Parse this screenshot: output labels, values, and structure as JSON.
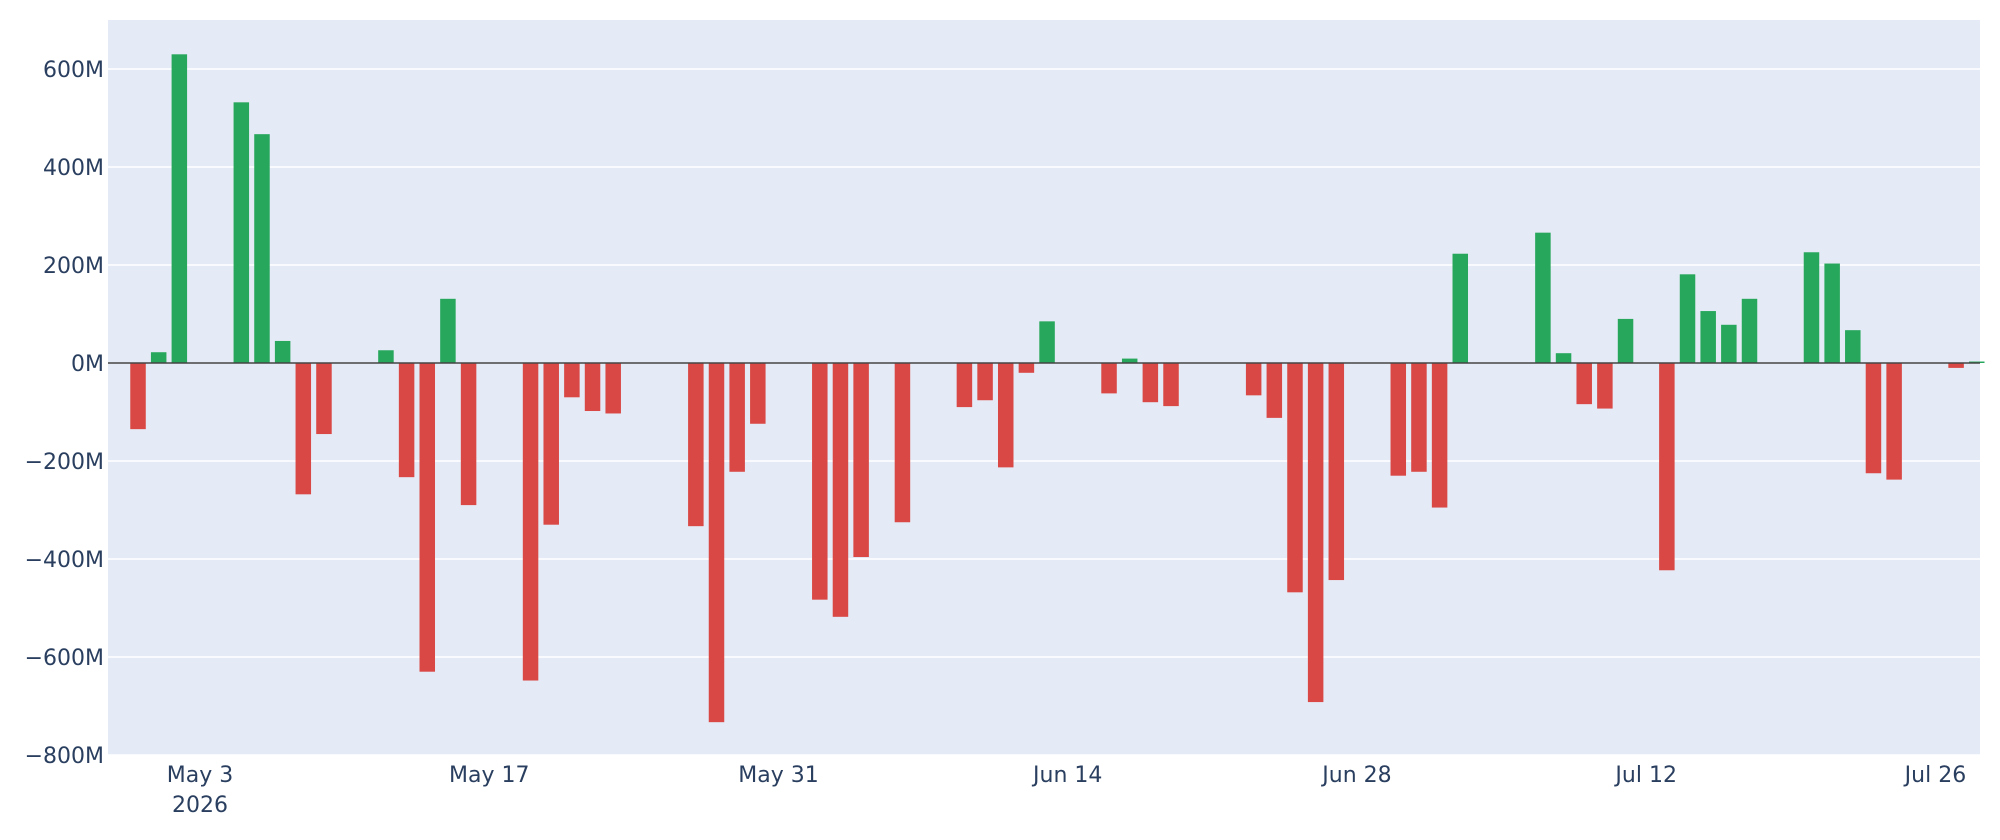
{
  "chart_data": {
    "type": "bar",
    "title": "",
    "xlabel": "",
    "ylabel": "",
    "x_axis": "date",
    "ylim": [
      -800000000,
      700000000
    ],
    "y_ticks": [
      {
        "value": 600000000,
        "label": "600M"
      },
      {
        "value": 400000000,
        "label": "400M"
      },
      {
        "value": 200000000,
        "label": "200M"
      },
      {
        "value": 0,
        "label": "0M"
      },
      {
        "value": -200000000,
        "label": "−200M"
      },
      {
        "value": -400000000,
        "label": "−400M"
      },
      {
        "value": -600000000,
        "label": "−600M"
      },
      {
        "value": -800000000,
        "label": "−800M"
      }
    ],
    "x_ticks": [
      {
        "date": "2026-05-03",
        "label": "May 3",
        "sublabel": "2026"
      },
      {
        "date": "2026-05-17",
        "label": "May 17"
      },
      {
        "date": "2026-05-31",
        "label": "May 31"
      },
      {
        "date": "2026-06-14",
        "label": "Jun 14"
      },
      {
        "date": "2026-06-28",
        "label": "Jun 28"
      },
      {
        "date": "2026-07-12",
        "label": "Jul 12"
      },
      {
        "date": "2026-07-26",
        "label": "Jul 26"
      }
    ],
    "colors": {
      "positive": "#27a75b",
      "negative": "#d94844",
      "plot_background": "#e5ebf6",
      "gridline": "#ffffff",
      "zero_line": "#444444",
      "tick_text": "#2a3f5f"
    },
    "grid": true,
    "legend": false,
    "points": [
      {
        "date": "2026-04-30",
        "value": -135000000
      },
      {
        "date": "2026-05-01",
        "value": 22000000
      },
      {
        "date": "2026-05-02",
        "value": 630000000
      },
      {
        "date": "2026-05-05",
        "value": 532000000
      },
      {
        "date": "2026-05-06",
        "value": 467000000
      },
      {
        "date": "2026-05-07",
        "value": 45000000
      },
      {
        "date": "2026-05-08",
        "value": -268000000
      },
      {
        "date": "2026-05-09",
        "value": -145000000
      },
      {
        "date": "2026-05-12",
        "value": 26000000
      },
      {
        "date": "2026-05-13",
        "value": -233000000
      },
      {
        "date": "2026-05-14",
        "value": -630000000
      },
      {
        "date": "2026-05-15",
        "value": 131000000
      },
      {
        "date": "2026-05-16",
        "value": -290000000
      },
      {
        "date": "2026-05-19",
        "value": -648000000
      },
      {
        "date": "2026-05-20",
        "value": -330000000
      },
      {
        "date": "2026-05-21",
        "value": -70000000
      },
      {
        "date": "2026-05-22",
        "value": -98000000
      },
      {
        "date": "2026-05-23",
        "value": -103000000
      },
      {
        "date": "2026-05-27",
        "value": -333000000
      },
      {
        "date": "2026-05-28",
        "value": -733000000
      },
      {
        "date": "2026-05-29",
        "value": -222000000
      },
      {
        "date": "2026-05-30",
        "value": -124000000
      },
      {
        "date": "2026-06-02",
        "value": -483000000
      },
      {
        "date": "2026-06-03",
        "value": -518000000
      },
      {
        "date": "2026-06-04",
        "value": -396000000
      },
      {
        "date": "2026-06-06",
        "value": -325000000
      },
      {
        "date": "2026-06-09",
        "value": -90000000
      },
      {
        "date": "2026-06-10",
        "value": -76000000
      },
      {
        "date": "2026-06-11",
        "value": -213000000
      },
      {
        "date": "2026-06-12",
        "value": -20000000
      },
      {
        "date": "2026-06-13",
        "value": 85000000
      },
      {
        "date": "2026-06-16",
        "value": -62000000
      },
      {
        "date": "2026-06-17",
        "value": 9000000
      },
      {
        "date": "2026-06-18",
        "value": -80000000
      },
      {
        "date": "2026-06-19",
        "value": -88000000
      },
      {
        "date": "2026-06-23",
        "value": -66000000
      },
      {
        "date": "2026-06-24",
        "value": -112000000
      },
      {
        "date": "2026-06-25",
        "value": -468000000
      },
      {
        "date": "2026-06-26",
        "value": -692000000
      },
      {
        "date": "2026-06-27",
        "value": -443000000
      },
      {
        "date": "2026-06-30",
        "value": -230000000
      },
      {
        "date": "2026-07-01",
        "value": -222000000
      },
      {
        "date": "2026-07-02",
        "value": -295000000
      },
      {
        "date": "2026-07-03",
        "value": 223000000
      },
      {
        "date": "2026-07-07",
        "value": 266000000
      },
      {
        "date": "2026-07-08",
        "value": 20000000
      },
      {
        "date": "2026-07-09",
        "value": -84000000
      },
      {
        "date": "2026-07-10",
        "value": -93000000
      },
      {
        "date": "2026-07-11",
        "value": 90000000
      },
      {
        "date": "2026-07-13",
        "value": -423000000
      },
      {
        "date": "2026-07-14",
        "value": 181000000
      },
      {
        "date": "2026-07-15",
        "value": 106000000
      },
      {
        "date": "2026-07-16",
        "value": 78000000
      },
      {
        "date": "2026-07-17",
        "value": 131000000
      },
      {
        "date": "2026-07-20",
        "value": 226000000
      },
      {
        "date": "2026-07-21",
        "value": 203000000
      },
      {
        "date": "2026-07-22",
        "value": 67000000
      },
      {
        "date": "2026-07-23",
        "value": -225000000
      },
      {
        "date": "2026-07-24",
        "value": -238000000
      },
      {
        "date": "2026-07-27",
        "value": -10000000
      },
      {
        "date": "2026-07-28",
        "value": 3000000
      }
    ]
  }
}
